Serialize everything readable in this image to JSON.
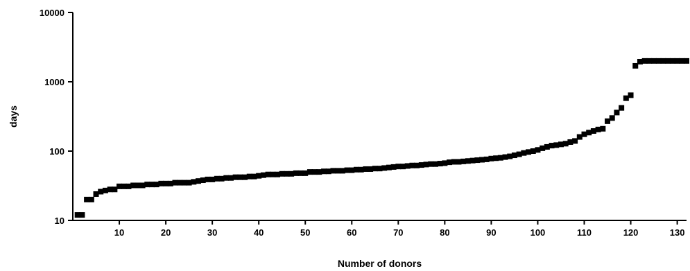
{
  "chart_data": {
    "type": "scatter",
    "xlabel": "Number of donors",
    "ylabel": "days",
    "xlim": [
      0,
      132
    ],
    "ylim": [
      10,
      10000
    ],
    "yscale": "log",
    "xticks": [
      10,
      20,
      30,
      40,
      50,
      60,
      70,
      80,
      90,
      100,
      110,
      120,
      130
    ],
    "yticks": [
      10,
      100,
      1000,
      10000
    ],
    "xtick_labels": [
      "10",
      "20",
      "30",
      "40",
      "50",
      "60",
      "70",
      "80",
      "90",
      "100",
      "110",
      "120",
      "130"
    ],
    "ytick_labels": [
      "10",
      "100",
      "1000",
      "10000"
    ],
    "grid": false,
    "marker": "square",
    "color": "#000000",
    "series": [
      {
        "x": [
          1,
          2,
          3,
          4,
          5,
          6,
          7,
          8,
          9,
          10,
          11,
          12,
          13,
          14,
          15,
          16,
          17,
          18,
          19,
          20,
          21,
          22,
          23,
          24,
          25,
          26,
          27,
          28,
          29,
          30,
          31,
          32,
          33,
          34,
          35,
          36,
          37,
          38,
          39,
          40,
          41,
          42,
          43,
          44,
          45,
          46,
          47,
          48,
          49,
          50,
          51,
          52,
          53,
          54,
          55,
          56,
          57,
          58,
          59,
          60,
          61,
          62,
          63,
          64,
          65,
          66,
          67,
          68,
          69,
          70,
          71,
          72,
          73,
          74,
          75,
          76,
          77,
          78,
          79,
          80,
          81,
          82,
          83,
          84,
          85,
          86,
          87,
          88,
          89,
          90,
          91,
          92,
          93,
          94,
          95,
          96,
          97,
          98,
          99,
          100,
          101,
          102,
          103,
          104,
          105,
          106,
          107,
          108,
          109,
          110,
          111,
          112,
          113,
          114,
          115,
          116,
          117,
          118,
          119,
          120,
          121,
          122,
          123,
          124,
          125,
          126,
          127,
          128,
          129,
          130,
          131,
          132
        ],
        "y": [
          12,
          12,
          20,
          20,
          24,
          26,
          27,
          28,
          28,
          31,
          31,
          31,
          32,
          32,
          32,
          33,
          33,
          33,
          34,
          34,
          34,
          35,
          35,
          35,
          35,
          36,
          37,
          38,
          39,
          39,
          40,
          40,
          41,
          41,
          42,
          42,
          42,
          43,
          43,
          44,
          45,
          46,
          46,
          46,
          47,
          47,
          47,
          48,
          48,
          48,
          50,
          50,
          50,
          51,
          51,
          52,
          52,
          52,
          53,
          53,
          54,
          54,
          55,
          55,
          56,
          56,
          57,
          58,
          59,
          60,
          60,
          61,
          62,
          62,
          63,
          64,
          65,
          65,
          66,
          67,
          69,
          70,
          70,
          71,
          72,
          73,
          74,
          75,
          76,
          78,
          79,
          80,
          82,
          84,
          87,
          90,
          94,
          97,
          100,
          104,
          110,
          115,
          120,
          122,
          125,
          128,
          135,
          140,
          160,
          175,
          185,
          195,
          205,
          210,
          270,
          300,
          360,
          420,
          580,
          640,
          1700,
          1950,
          2000,
          2000,
          2000,
          2000,
          2000,
          2000,
          2000,
          2000,
          2000,
          2000
        ]
      }
    ]
  }
}
